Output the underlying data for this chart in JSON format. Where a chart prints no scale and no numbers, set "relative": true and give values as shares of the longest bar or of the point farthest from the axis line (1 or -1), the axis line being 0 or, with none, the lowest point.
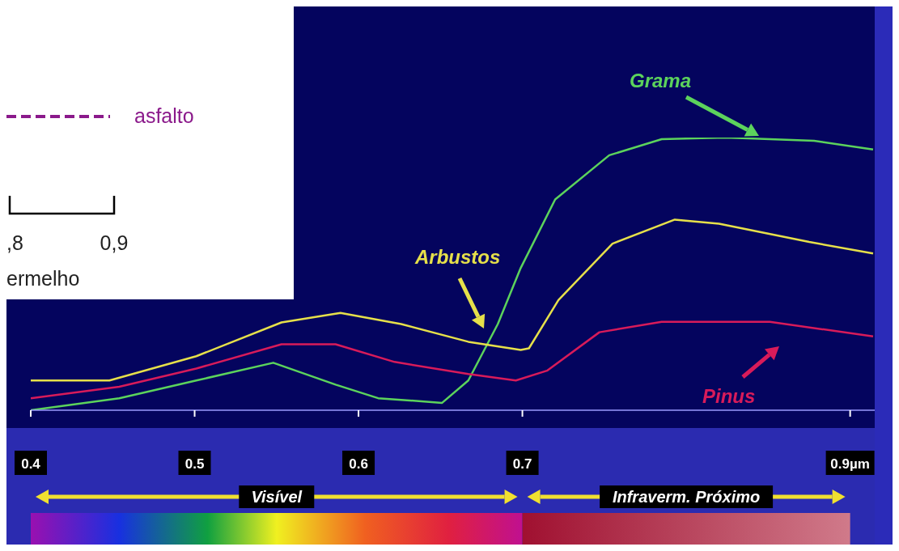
{
  "chart_data": {
    "type": "line",
    "relative": true,
    "xlim": [
      0.4,
      0.915
    ],
    "xticks": [
      0.4,
      0.5,
      0.6,
      0.7,
      {
        "value": 0.9,
        "label": "0.9µm"
      }
    ],
    "series": [
      {
        "name": "Grama",
        "color": "#5cd35c",
        "x": [
          0.4,
          0.454,
          0.501,
          0.548,
          0.586,
          0.612,
          0.651,
          0.667,
          0.685,
          0.699,
          0.72,
          0.753,
          0.785,
          0.824,
          0.878,
          0.914
        ],
        "values": [
          0,
          0.044,
          0.109,
          0.174,
          0.094,
          0.044,
          0.027,
          0.109,
          0.316,
          0.522,
          0.773,
          0.935,
          0.994,
          1,
          0.988,
          0.956
        ]
      },
      {
        "name": "Arbustos",
        "color": "#e6e04a",
        "x": [
          0.4,
          0.448,
          0.501,
          0.553,
          0.589,
          0.626,
          0.667,
          0.699,
          0.704,
          0.722,
          0.755,
          0.793,
          0.82,
          0.875,
          0.914
        ],
        "values": [
          0.109,
          0.109,
          0.198,
          0.322,
          0.357,
          0.316,
          0.251,
          0.221,
          0.227,
          0.404,
          0.611,
          0.699,
          0.684,
          0.617,
          0.575
        ]
      },
      {
        "name": "Pinus",
        "color": "#d81b5a",
        "x": [
          0.4,
          0.454,
          0.501,
          0.553,
          0.586,
          0.622,
          0.667,
          0.696,
          0.715,
          0.747,
          0.785,
          0.851,
          0.914
        ],
        "values": [
          0.044,
          0.086,
          0.153,
          0.242,
          0.242,
          0.177,
          0.133,
          0.109,
          0.145,
          0.286,
          0.324,
          0.324,
          0.271
        ]
      }
    ],
    "annotations": [
      "asfalto",
      ",8",
      "0,9",
      "ermelho",
      "Visível",
      "Infraverm. Próximo"
    ]
  }
}
